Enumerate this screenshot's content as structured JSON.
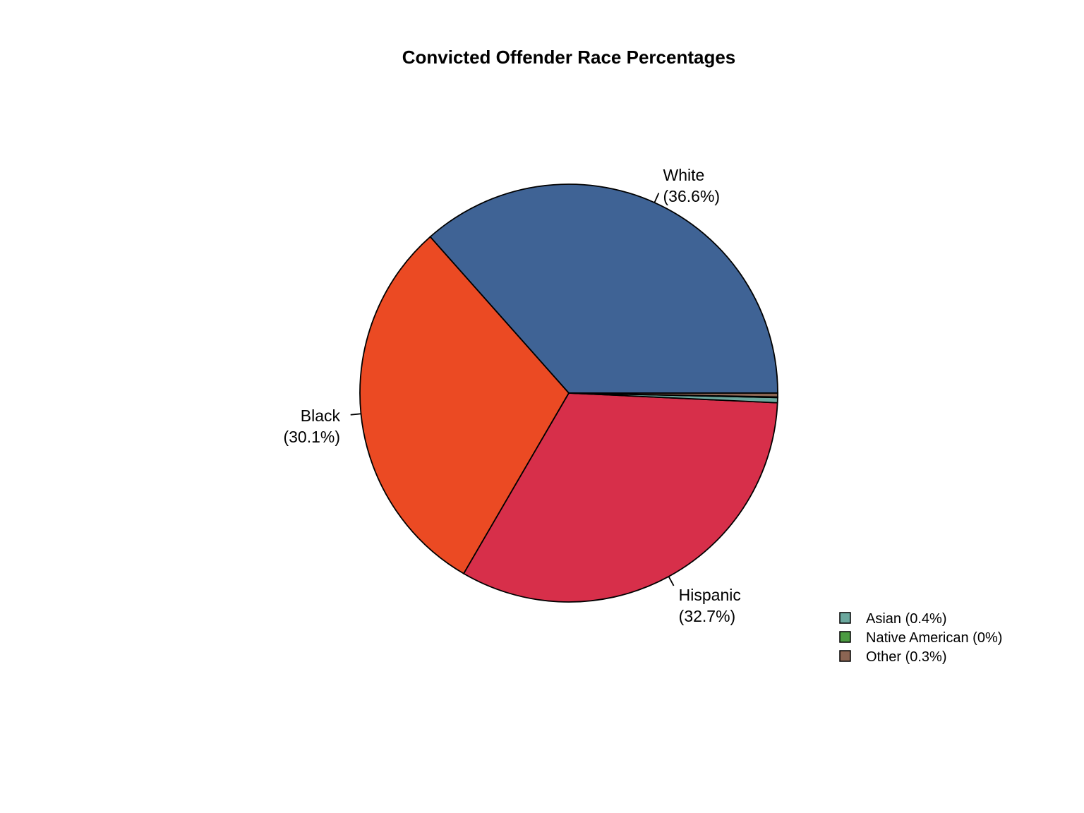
{
  "chart_data": {
    "type": "pie",
    "title": "Convicted Offender Race Percentages",
    "slices": [
      {
        "name": "White",
        "value": 36.6,
        "label_pct": "(36.6%)",
        "color": "#3F6395",
        "labelled": true
      },
      {
        "name": "Black",
        "value": 30.1,
        "label_pct": "(30.1%)",
        "color": "#EB4A23",
        "labelled": true
      },
      {
        "name": "Hispanic",
        "value": 32.7,
        "label_pct": "(32.7%)",
        "color": "#D72F4A",
        "labelled": true
      },
      {
        "name": "Asian",
        "value": 0.4,
        "label_pct": "(0.4%)",
        "color": "#6BA89E",
        "labelled": false
      },
      {
        "name": "Native American",
        "value": 0.04,
        "label_pct": "(0%)",
        "color": "#4C9B42",
        "labelled": false
      },
      {
        "name": "Other",
        "value": 0.3,
        "label_pct": "(0.3%)",
        "color": "#8B6553",
        "labelled": false
      }
    ],
    "slice_order": "counterclockwise from 0°",
    "legend": {
      "placement": "bottom-right",
      "entries": [
        "Asian (0.4%)",
        "Native American (0%)",
        "Other (0.3%)"
      ]
    }
  }
}
